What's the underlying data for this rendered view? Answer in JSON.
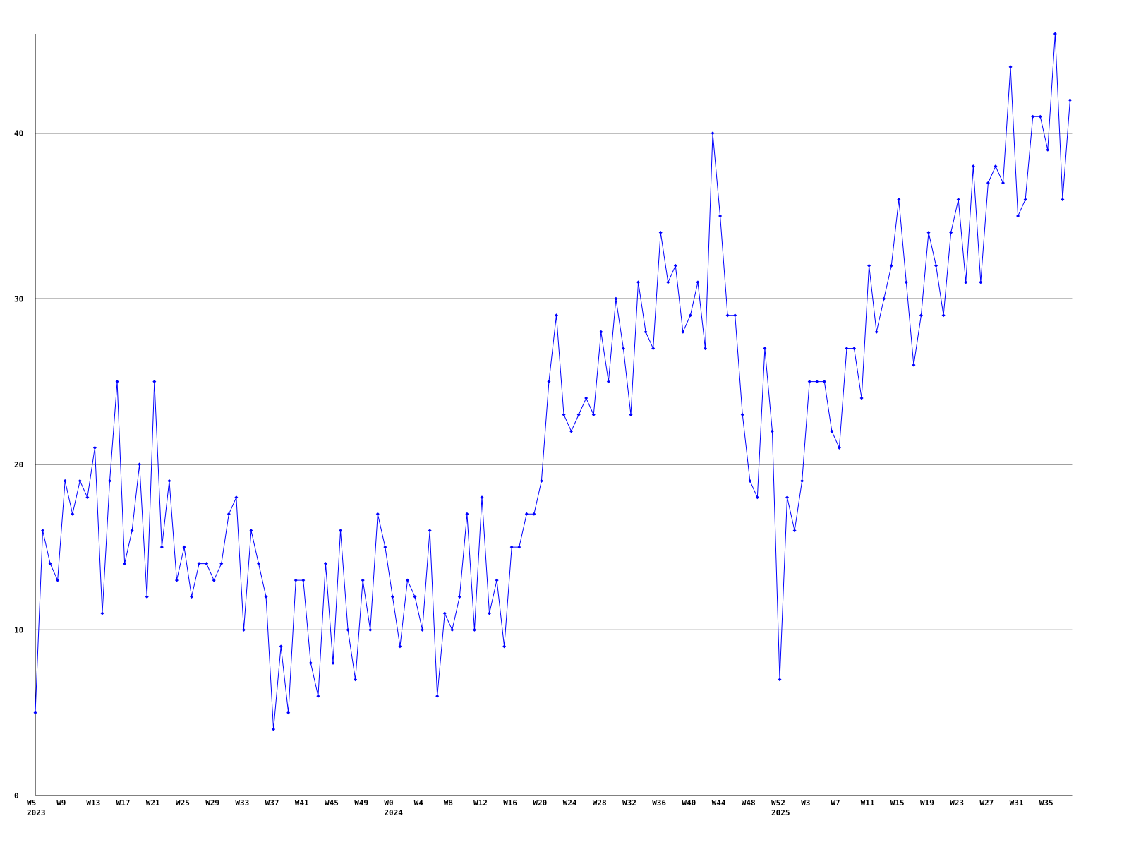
{
  "chart_data": {
    "type": "line",
    "categories": [
      "W5\n2023",
      null,
      null,
      null,
      "W9",
      null,
      null,
      null,
      "W13",
      null,
      null,
      null,
      "W17",
      null,
      null,
      null,
      "W21",
      null,
      null,
      null,
      "W25",
      null,
      null,
      null,
      "W29",
      null,
      null,
      null,
      "W33",
      null,
      null,
      null,
      "W37",
      null,
      null,
      null,
      "W41",
      null,
      null,
      null,
      "W45",
      null,
      null,
      null,
      "W49",
      null,
      null,
      null,
      "W0\n2024",
      null,
      null,
      null,
      "W4",
      null,
      null,
      null,
      "W8",
      null,
      null,
      null,
      "W12",
      null,
      null,
      null,
      "W16",
      null,
      null,
      null,
      "W20",
      null,
      null,
      null,
      "W24",
      null,
      null,
      null,
      "W28",
      null,
      null,
      null,
      "W32",
      null,
      null,
      null,
      "W36",
      null,
      null,
      null,
      "W40",
      null,
      null,
      null,
      "W44",
      null,
      null,
      null,
      "W48",
      null,
      null,
      null,
      "W52\n2025",
      null,
      null,
      null,
      "W3",
      null,
      null,
      null,
      "W7",
      null,
      null,
      null,
      "W11",
      null,
      null,
      null,
      "W15",
      null,
      null,
      null,
      "W19",
      null,
      null,
      null,
      "W23",
      null,
      null,
      null,
      "W27",
      null,
      null,
      null,
      "W31",
      null,
      null,
      null,
      "W35",
      null,
      null,
      null
    ],
    "series": [
      {
        "color": "#0000ff",
        "values": [
          5,
          16,
          14,
          13,
          19,
          17,
          19,
          18,
          21,
          11,
          19,
          25,
          14,
          16,
          20,
          12,
          25,
          15,
          19,
          13,
          15,
          12,
          14,
          14,
          13,
          14,
          17,
          18,
          10,
          16,
          14,
          12,
          4,
          9,
          5,
          13,
          13,
          8,
          6,
          14,
          8,
          16,
          10,
          7,
          13,
          10,
          17,
          15,
          12,
          9,
          13,
          12,
          10,
          16,
          6,
          11,
          10,
          12,
          17,
          10,
          18,
          11,
          13,
          9,
          15,
          15,
          17,
          17,
          19,
          25,
          29,
          23,
          22,
          23,
          24,
          23,
          28,
          25,
          30,
          27,
          23,
          31,
          28,
          27,
          34,
          31,
          32,
          28,
          29,
          31,
          27,
          40,
          35,
          29,
          29,
          23,
          19,
          18,
          27,
          22,
          7,
          18,
          16,
          19,
          25,
          25,
          25,
          22,
          21,
          27,
          27,
          24,
          32,
          28,
          30,
          32,
          36,
          31,
          26,
          29,
          34,
          32,
          29,
          34,
          36,
          31,
          38,
          31,
          37,
          38,
          37,
          44,
          35,
          36,
          41,
          41,
          39,
          46,
          36,
          42
        ]
      }
    ],
    "ylim": [
      0,
      46
    ],
    "yticks": [
      0,
      10,
      20,
      30,
      40
    ],
    "grid": true
  }
}
